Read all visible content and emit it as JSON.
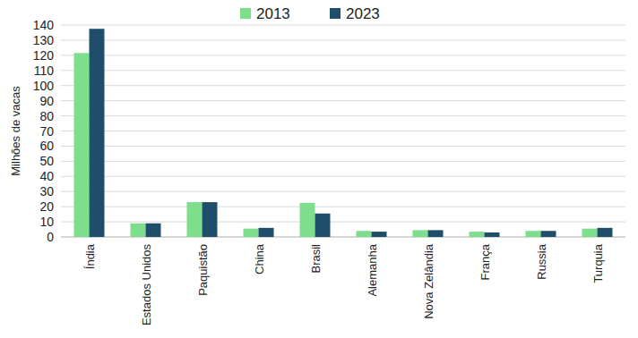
{
  "chart_data": {
    "type": "bar",
    "y_label": "Milhões de vacas",
    "categories": [
      "Índia",
      "Estados Unidos",
      "Paquistão",
      "China",
      "Brasil",
      "Alemanha",
      "Nova Zelândia",
      "França",
      "Russia",
      "Turquia"
    ],
    "series": [
      {
        "name": "2013",
        "color": "#7ddf8c",
        "values": [
          121.5,
          9,
          23,
          5.5,
          22.5,
          4,
          4.5,
          3.5,
          4,
          5.5
        ]
      },
      {
        "name": "2023",
        "color": "#1f4e6b",
        "values": [
          137.5,
          9,
          23,
          6,
          15.5,
          3.5,
          4.5,
          3,
          4,
          6
        ]
      }
    ],
    "ylim": [
      0,
      140
    ],
    "yticks": [
      0,
      10,
      20,
      30,
      40,
      50,
      60,
      70,
      80,
      90,
      100,
      110,
      120,
      130,
      140
    ],
    "grid": true,
    "legend": "top"
  }
}
